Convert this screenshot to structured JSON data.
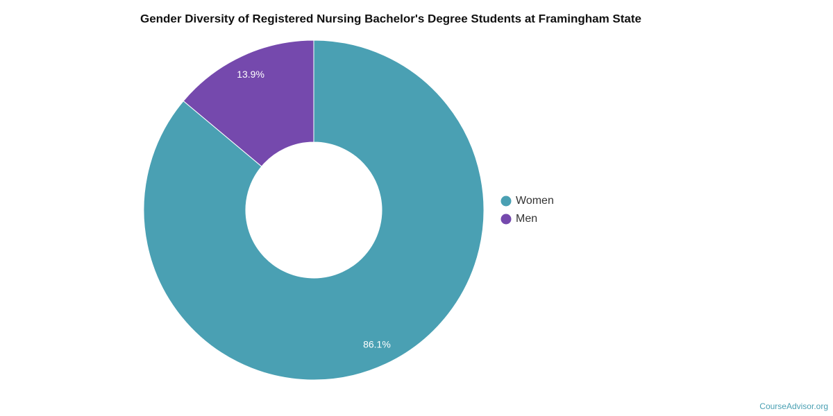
{
  "chart_data": {
    "type": "donut",
    "title": "Gender Diversity of Registered Nursing Bachelor's Degree Students at Framingham State",
    "categories": [
      "Women",
      "Men"
    ],
    "values": [
      86.1,
      13.9
    ],
    "value_labels": [
      "86.1%",
      "13.9%"
    ],
    "colors": [
      "#4aa0b3",
      "#7549ad"
    ],
    "legend": "right",
    "source": "CourseAdvisor.org"
  }
}
